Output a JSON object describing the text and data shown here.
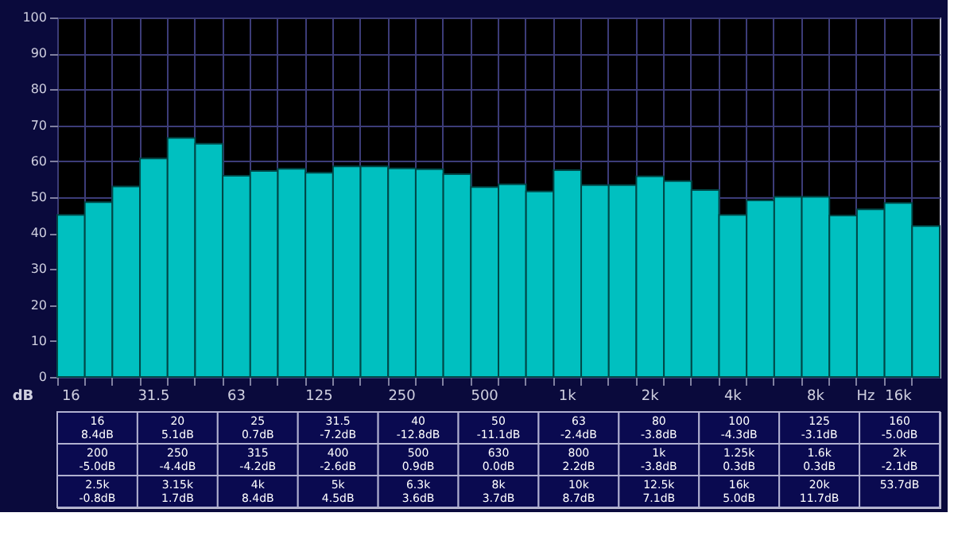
{
  "chart_data": {
    "type": "bar",
    "xlabel": "Hz",
    "ylabel": "dB",
    "categories": [
      "16",
      null,
      null,
      "31.5",
      null,
      null,
      "63",
      null,
      null,
      "125",
      null,
      null,
      "250",
      null,
      null,
      "500",
      null,
      null,
      "1k",
      null,
      null,
      "2k",
      null,
      null,
      "4k",
      null,
      null,
      "8k",
      null,
      null,
      "16k",
      null
    ],
    "values": [
      45.1,
      48.6,
      53,
      60.8,
      66.5,
      64.9,
      56,
      57.3,
      57.9,
      56.8,
      58.6,
      58.6,
      58,
      57.8,
      56.4,
      52.8,
      53.6,
      51.6,
      57.5,
      53.4,
      53.4,
      55.8,
      54.5,
      52,
      45.1,
      49.1,
      50.1,
      50.1,
      44.9,
      46.6,
      48.4,
      42
    ],
    "color": "#00c0c0",
    "ylim": [
      0,
      100
    ],
    "yticks": [
      0,
      10,
      20,
      30,
      40,
      50,
      60,
      70,
      80,
      90,
      100
    ],
    "grid": true,
    "annotations": [
      "16\n8.4dB",
      "20\n5.1dB",
      "25\n0.7dB",
      "31.5\n-7.2dB",
      "40\n-12.8dB",
      "50\n-11.1dB",
      "63\n-2.4dB",
      "80\n-3.8dB",
      "100\n-4.3dB",
      "125\n-3.1dB",
      "160\n-5.0dB",
      "200\n-5.0dB",
      "250\n-4.4dB",
      "315\n-4.2dB",
      "400\n-2.6dB",
      "500\n0.9dB",
      "630\n0.0dB",
      "800\n2.2dB",
      "1k\n-3.8dB",
      "1.25k\n0.3dB",
      "1.6k\n0.3dB",
      "2k\n-2.1dB",
      "2.5k\n-0.8dB",
      "3.15k\n1.7dB",
      "4k\n8.4dB",
      "5k\n4.5dB",
      "6.3k\n3.6dB",
      "8k\n3.7dB",
      "10k\n8.7dB",
      "12.5k\n7.1dB",
      "16k\n5.0dB",
      "20k\n11.7dB",
      "53.7dB"
    ]
  }
}
